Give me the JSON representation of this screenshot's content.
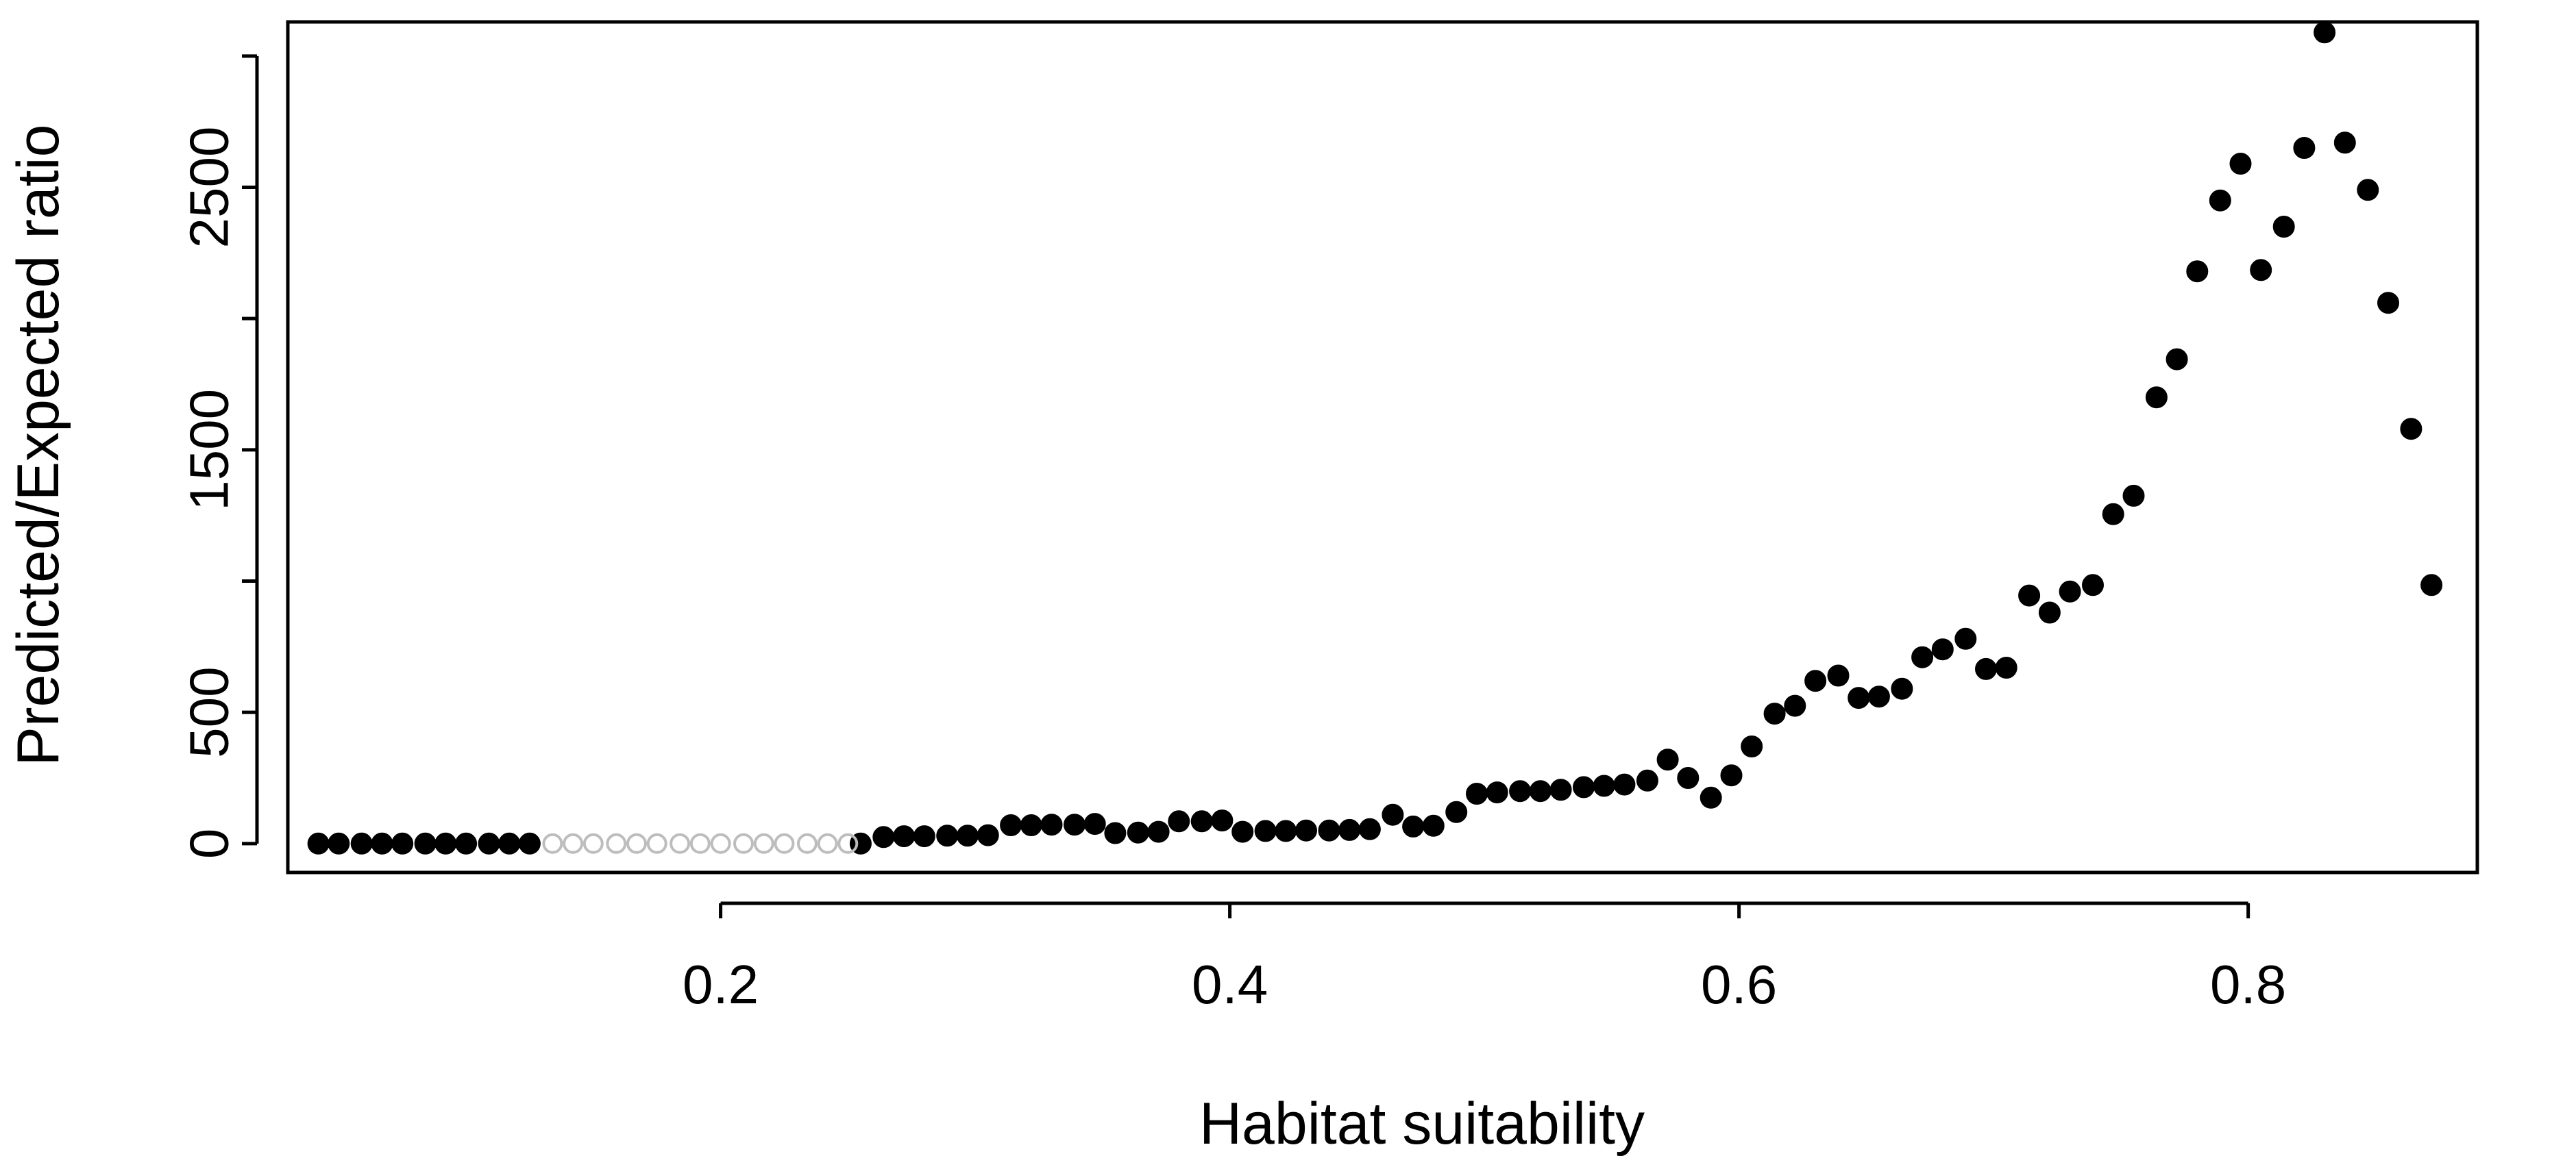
{
  "chart_data": {
    "type": "scatter",
    "title": "",
    "xlabel": "Habitat suitability",
    "ylabel": "Predicted/Expected ratio",
    "xlim": [
      0.03,
      0.89
    ],
    "ylim": [
      -110,
      3130
    ],
    "xticks": [
      0.2,
      0.4,
      0.6,
      0.8
    ],
    "xtick_labels": [
      "0.2",
      "0.4",
      "0.6",
      "0.8"
    ],
    "yticks": [
      0,
      500,
      1000,
      1500,
      2000,
      2500,
      3000
    ],
    "ytick_labels": [
      "0",
      "500",
      "",
      "1500",
      "",
      "2500",
      ""
    ],
    "grid": false,
    "legend": null,
    "colors": {
      "filled": "#000000",
      "hollow_stroke": "#bdbdbd",
      "axes": "#000000"
    },
    "series": [
      {
        "name": "filled",
        "style": "filled",
        "points": [
          [
            0.042,
            0
          ],
          [
            0.05,
            0
          ],
          [
            0.059,
            0
          ],
          [
            0.067,
            0
          ],
          [
            0.075,
            0
          ],
          [
            0.084,
            0
          ],
          [
            0.092,
            0
          ],
          [
            0.1,
            0
          ],
          [
            0.109,
            0
          ],
          [
            0.117,
            0
          ],
          [
            0.125,
            0
          ],
          [
            0.255,
            0
          ],
          [
            0.264,
            25
          ],
          [
            0.272,
            28
          ],
          [
            0.28,
            28
          ],
          [
            0.289,
            30
          ],
          [
            0.297,
            30
          ],
          [
            0.305,
            32
          ],
          [
            0.314,
            70
          ],
          [
            0.322,
            70
          ],
          [
            0.33,
            72
          ],
          [
            0.339,
            72
          ],
          [
            0.347,
            75
          ],
          [
            0.355,
            40
          ],
          [
            0.364,
            42
          ],
          [
            0.372,
            45
          ],
          [
            0.38,
            85
          ],
          [
            0.389,
            85
          ],
          [
            0.397,
            88
          ],
          [
            0.405,
            45
          ],
          [
            0.414,
            48
          ],
          [
            0.422,
            48
          ],
          [
            0.43,
            50
          ],
          [
            0.439,
            50
          ],
          [
            0.447,
            52
          ],
          [
            0.455,
            55
          ],
          [
            0.464,
            110
          ],
          [
            0.472,
            65
          ],
          [
            0.48,
            68
          ],
          [
            0.489,
            120
          ],
          [
            0.497,
            190
          ],
          [
            0.505,
            195
          ],
          [
            0.514,
            200
          ],
          [
            0.522,
            200
          ],
          [
            0.53,
            205
          ],
          [
            0.539,
            215
          ],
          [
            0.547,
            220
          ],
          [
            0.555,
            225
          ],
          [
            0.564,
            240
          ],
          [
            0.572,
            320
          ],
          [
            0.58,
            250
          ],
          [
            0.589,
            175
          ],
          [
            0.597,
            260
          ],
          [
            0.605,
            370
          ],
          [
            0.614,
            495
          ],
          [
            0.622,
            525
          ],
          [
            0.63,
            620
          ],
          [
            0.639,
            640
          ],
          [
            0.647,
            555
          ],
          [
            0.655,
            560
          ],
          [
            0.664,
            590
          ],
          [
            0.672,
            710
          ],
          [
            0.68,
            740
          ],
          [
            0.689,
            780
          ],
          [
            0.697,
            665
          ],
          [
            0.705,
            670
          ],
          [
            0.714,
            945
          ],
          [
            0.722,
            880
          ],
          [
            0.73,
            960
          ],
          [
            0.739,
            985
          ],
          [
            0.747,
            1255
          ],
          [
            0.755,
            1325
          ],
          [
            0.764,
            1700
          ],
          [
            0.772,
            1845
          ],
          [
            0.78,
            2180
          ],
          [
            0.789,
            2450
          ],
          [
            0.797,
            2590
          ],
          [
            0.805,
            2185
          ],
          [
            0.814,
            2350
          ],
          [
            0.822,
            2650
          ],
          [
            0.83,
            3090
          ],
          [
            0.838,
            2670
          ],
          [
            0.847,
            2490
          ],
          [
            0.855,
            2060
          ],
          [
            0.864,
            1580
          ],
          [
            0.872,
            985
          ]
        ]
      },
      {
        "name": "hollow",
        "style": "hollow",
        "points": [
          [
            0.134,
            0
          ],
          [
            0.142,
            0
          ],
          [
            0.15,
            0
          ],
          [
            0.159,
            0
          ],
          [
            0.167,
            0
          ],
          [
            0.175,
            0
          ],
          [
            0.184,
            0
          ],
          [
            0.192,
            0
          ],
          [
            0.2,
            0
          ],
          [
            0.209,
            0
          ],
          [
            0.217,
            0
          ],
          [
            0.225,
            0
          ],
          [
            0.234,
            0
          ],
          [
            0.242,
            0
          ],
          [
            0.25,
            0
          ]
        ]
      }
    ]
  }
}
